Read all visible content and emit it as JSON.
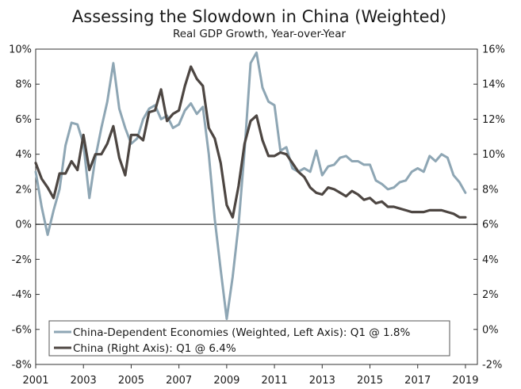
{
  "chart_data": {
    "type": "line",
    "title": "Assessing the Slowdown in China (Weighted)",
    "subtitle": "Real GDP Growth, Year-over-Year",
    "x_range": [
      2001,
      2019.5
    ],
    "x_ticks": [
      2001,
      2003,
      2005,
      2007,
      2009,
      2011,
      2013,
      2015,
      2017,
      2019
    ],
    "y_left": {
      "range": [
        -8,
        10
      ],
      "ticks": [
        -8,
        -6,
        -4,
        -2,
        0,
        2,
        4,
        6,
        8,
        10
      ],
      "format": "%"
    },
    "y_right": {
      "range": [
        -2,
        16
      ],
      "ticks": [
        -2,
        0,
        2,
        4,
        6,
        8,
        10,
        12,
        14,
        16
      ],
      "format": "%"
    },
    "zero_line": 0,
    "legend": {
      "position": "bottom-left",
      "entries": [
        "China-Dependent Economies (Weighted, Left Axis): Q1 @ 1.8%",
        "China (Right Axis): Q1 @ 6.4%"
      ]
    },
    "series": [
      {
        "name": "China-Dependent Economies (Weighted, Left Axis)",
        "axis": "left",
        "color": "#8ea6b4",
        "x": [
          2001.0,
          2001.25,
          2001.5,
          2001.75,
          2002.0,
          2002.25,
          2002.5,
          2002.75,
          2003.0,
          2003.25,
          2003.5,
          2003.75,
          2004.0,
          2004.25,
          2004.5,
          2004.75,
          2005.0,
          2005.25,
          2005.5,
          2005.75,
          2006.0,
          2006.25,
          2006.5,
          2006.75,
          2007.0,
          2007.25,
          2007.5,
          2007.75,
          2008.0,
          2008.25,
          2008.5,
          2008.75,
          2009.0,
          2009.25,
          2009.5,
          2009.75,
          2010.0,
          2010.25,
          2010.5,
          2010.75,
          2011.0,
          2011.25,
          2011.5,
          2011.75,
          2012.0,
          2012.25,
          2012.5,
          2012.75,
          2013.0,
          2013.25,
          2013.5,
          2013.75,
          2014.0,
          2014.25,
          2014.5,
          2014.75,
          2015.0,
          2015.25,
          2015.5,
          2015.75,
          2016.0,
          2016.25,
          2016.5,
          2016.75,
          2017.0,
          2017.25,
          2017.5,
          2017.75,
          2018.0,
          2018.25,
          2018.5,
          2018.75,
          2019.0
        ],
        "y": [
          3.0,
          1.0,
          -0.6,
          0.8,
          2.0,
          4.5,
          5.8,
          5.7,
          4.6,
          1.5,
          3.8,
          5.5,
          7.0,
          9.2,
          6.6,
          5.5,
          4.6,
          4.9,
          6.0,
          6.6,
          6.8,
          6.0,
          6.2,
          5.5,
          5.7,
          6.5,
          6.9,
          6.3,
          6.7,
          4.0,
          0.3,
          -2.6,
          -5.4,
          -3.0,
          0.0,
          4.2,
          9.2,
          9.8,
          7.8,
          7.0,
          6.8,
          4.2,
          4.4,
          3.2,
          3.0,
          3.2,
          3.0,
          4.2,
          2.8,
          3.3,
          3.4,
          3.8,
          3.9,
          3.6,
          3.6,
          3.4,
          3.4,
          2.5,
          2.3,
          2.0,
          2.1,
          2.4,
          2.5,
          3.0,
          3.2,
          3.0,
          3.9,
          3.6,
          4.0,
          3.8,
          2.8,
          2.4,
          1.8
        ]
      },
      {
        "name": "China (Right Axis)",
        "axis": "right",
        "color": "#4d4642",
        "x": [
          2001.0,
          2001.25,
          2001.5,
          2001.75,
          2002.0,
          2002.25,
          2002.5,
          2002.75,
          2003.0,
          2003.25,
          2003.5,
          2003.75,
          2004.0,
          2004.25,
          2004.5,
          2004.75,
          2005.0,
          2005.25,
          2005.5,
          2005.75,
          2006.0,
          2006.25,
          2006.5,
          2006.75,
          2007.0,
          2007.25,
          2007.5,
          2007.75,
          2008.0,
          2008.25,
          2008.5,
          2008.75,
          2009.0,
          2009.25,
          2009.5,
          2009.75,
          2010.0,
          2010.25,
          2010.5,
          2010.75,
          2011.0,
          2011.25,
          2011.5,
          2011.75,
          2012.0,
          2012.25,
          2012.5,
          2012.75,
          2013.0,
          2013.25,
          2013.5,
          2013.75,
          2014.0,
          2014.25,
          2014.5,
          2014.75,
          2015.0,
          2015.25,
          2015.5,
          2015.75,
          2016.0,
          2016.25,
          2016.5,
          2016.75,
          2017.0,
          2017.25,
          2017.5,
          2017.75,
          2018.0,
          2018.25,
          2018.5,
          2018.75,
          2019.0
        ],
        "y": [
          9.5,
          8.6,
          8.1,
          7.5,
          8.9,
          8.9,
          9.6,
          9.1,
          11.1,
          9.1,
          10.0,
          10.0,
          10.6,
          11.6,
          9.8,
          8.8,
          11.1,
          11.1,
          10.8,
          12.4,
          12.5,
          13.7,
          11.9,
          12.3,
          12.5,
          13.9,
          15.0,
          14.3,
          13.9,
          11.5,
          10.9,
          9.5,
          7.1,
          6.4,
          8.2,
          10.6,
          11.9,
          12.2,
          10.8,
          9.9,
          9.9,
          10.1,
          10.0,
          9.5,
          9.0,
          8.7,
          8.1,
          7.8,
          7.7,
          8.1,
          8.0,
          7.8,
          7.6,
          7.9,
          7.7,
          7.4,
          7.5,
          7.2,
          7.3,
          7.0,
          7.0,
          6.9,
          6.8,
          6.7,
          6.7,
          6.7,
          6.8,
          6.8,
          6.8,
          6.7,
          6.6,
          6.4,
          6.4
        ]
      }
    ]
  }
}
